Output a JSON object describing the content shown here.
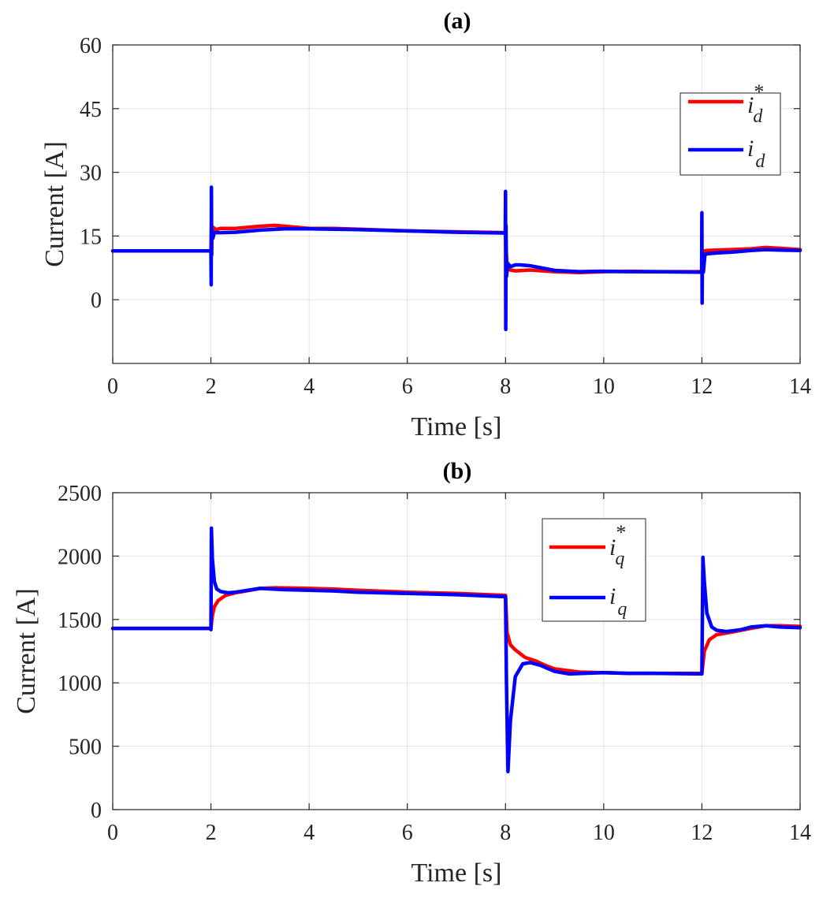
{
  "chart_data": [
    {
      "id": "a",
      "type": "line",
      "title": "(a)",
      "xlabel": "Time [s]",
      "ylabel": "Current [A]",
      "xlim": [
        0,
        14
      ],
      "ylim": [
        -15,
        60
      ],
      "xticks": [
        0,
        2,
        4,
        6,
        8,
        10,
        12,
        14
      ],
      "yticks": [
        0,
        15,
        30,
        45,
        60
      ],
      "grid": true,
      "legend_position": "top-right",
      "series": [
        {
          "name": "i_d*",
          "legend_base": "i",
          "legend_sup": "*",
          "legend_sub": "d",
          "color": "#ff0000",
          "x": [
            0,
            1.99,
            2.0,
            2.01,
            2.03,
            2.05,
            2.1,
            2.2,
            2.5,
            3.0,
            3.3,
            3.6,
            4.0,
            4.5,
            5.0,
            6.0,
            7.0,
            7.99,
            8.0,
            8.01,
            8.03,
            8.06,
            8.1,
            8.2,
            8.5,
            9.0,
            9.5,
            10.0,
            10.5,
            11.0,
            11.99,
            12.0,
            12.02,
            12.05,
            12.1,
            12.3,
            12.6,
            13.0,
            13.3,
            13.6,
            14.0
          ],
          "y": [
            11.5,
            11.5,
            11.5,
            18,
            15,
            17,
            16.5,
            16.8,
            16.8,
            17.3,
            17.5,
            17.2,
            16.8,
            16.8,
            16.6,
            16.2,
            16.0,
            15.8,
            15.8,
            12,
            8.5,
            7.2,
            7.0,
            6.8,
            7.0,
            6.6,
            6.4,
            6.6,
            6.7,
            6.6,
            6.6,
            6.6,
            10,
            11.5,
            11.6,
            11.7,
            11.8,
            12.0,
            12.3,
            12.1,
            11.8
          ]
        },
        {
          "name": "i_d",
          "legend_base": "i",
          "legend_sup": "",
          "legend_sub": "d",
          "color": "#0000ff",
          "x": [
            0,
            1.99,
            2.0,
            2.005,
            2.01,
            2.015,
            2.02,
            2.04,
            2.07,
            2.1,
            2.2,
            2.5,
            3.0,
            3.5,
            4.0,
            4.5,
            5.0,
            6.0,
            7.0,
            7.99,
            7.995,
            8.0,
            8.005,
            8.01,
            8.02,
            8.05,
            8.1,
            8.2,
            8.3,
            8.5,
            9.0,
            9.5,
            10.0,
            10.5,
            11.0,
            11.99,
            11.995,
            12.0,
            12.005,
            12.01,
            12.03,
            12.06,
            12.1,
            12.3,
            12.6,
            13.0,
            13.3,
            13.6,
            14.0
          ],
          "y": [
            11.5,
            11.5,
            11.5,
            3.5,
            26.5,
            10.5,
            16.5,
            14.5,
            15.8,
            15.8,
            15.8,
            15.9,
            16.4,
            16.7,
            16.7,
            16.6,
            16.5,
            16.2,
            15.9,
            15.7,
            15.7,
            25.5,
            -7,
            17.5,
            5.5,
            8.5,
            7.8,
            8.2,
            8.2,
            8.0,
            6.9,
            6.6,
            6.7,
            6.6,
            6.6,
            6.5,
            6.5,
            20.5,
            -0.8,
            11.0,
            6.5,
            10.5,
            10.8,
            11.0,
            11.2,
            11.6,
            11.8,
            11.7,
            11.6
          ]
        }
      ]
    },
    {
      "id": "b",
      "type": "line",
      "title": "(b)",
      "xlabel": "Time [s]",
      "ylabel": "Current [A]",
      "xlim": [
        0,
        14
      ],
      "ylim": [
        0,
        2500
      ],
      "xticks": [
        0,
        2,
        4,
        6,
        8,
        10,
        12,
        14
      ],
      "yticks": [
        0,
        500,
        1000,
        1500,
        2000,
        2500
      ],
      "grid": true,
      "legend_position": "top-center-right",
      "series": [
        {
          "name": "i_q*",
          "legend_base": "i",
          "legend_sup": "*",
          "legend_sub": "q",
          "color": "#ff0000",
          "x": [
            0,
            1.99,
            2.0,
            2.03,
            2.07,
            2.15,
            2.3,
            2.5,
            3.0,
            3.3,
            3.6,
            4.0,
            4.5,
            5.0,
            6.0,
            7.0,
            7.99,
            8.0,
            8.03,
            8.1,
            8.2,
            8.4,
            8.6,
            8.8,
            9.0,
            9.5,
            10.0,
            10.5,
            11.0,
            11.99,
            12.0,
            12.05,
            12.15,
            12.3,
            12.6,
            13.0,
            13.3,
            13.6,
            14.0
          ],
          "y": [
            1430,
            1430,
            1430,
            1530,
            1600,
            1650,
            1690,
            1710,
            1745,
            1750,
            1748,
            1745,
            1740,
            1730,
            1715,
            1705,
            1690,
            1690,
            1400,
            1300,
            1260,
            1200,
            1175,
            1140,
            1110,
            1085,
            1080,
            1075,
            1075,
            1075,
            1075,
            1250,
            1340,
            1380,
            1400,
            1430,
            1450,
            1450,
            1445
          ]
        },
        {
          "name": "i_q",
          "legend_base": "i",
          "legend_sup": "",
          "legend_sub": "q",
          "color": "#0000ff",
          "x": [
            0,
            1.99,
            2.0,
            2.01,
            2.03,
            2.07,
            2.12,
            2.2,
            2.35,
            2.5,
            3.0,
            3.5,
            4.0,
            4.5,
            5.0,
            6.0,
            7.0,
            7.99,
            8.0,
            8.02,
            8.05,
            8.1,
            8.2,
            8.35,
            8.5,
            8.7,
            9.0,
            9.3,
            9.6,
            10.0,
            10.5,
            11.0,
            11.99,
            12.0,
            12.02,
            12.05,
            12.1,
            12.2,
            12.3,
            12.5,
            12.8,
            13.0,
            13.3,
            13.6,
            14.0
          ],
          "y": [
            1430,
            1430,
            1420,
            2220,
            1980,
            1800,
            1740,
            1720,
            1710,
            1715,
            1745,
            1735,
            1730,
            1725,
            1715,
            1705,
            1695,
            1680,
            1680,
            1000,
            300,
            700,
            1050,
            1150,
            1160,
            1140,
            1090,
            1070,
            1075,
            1080,
            1075,
            1075,
            1070,
            1070,
            1990,
            1800,
            1550,
            1440,
            1415,
            1405,
            1420,
            1440,
            1450,
            1440,
            1435
          ]
        }
      ]
    }
  ]
}
